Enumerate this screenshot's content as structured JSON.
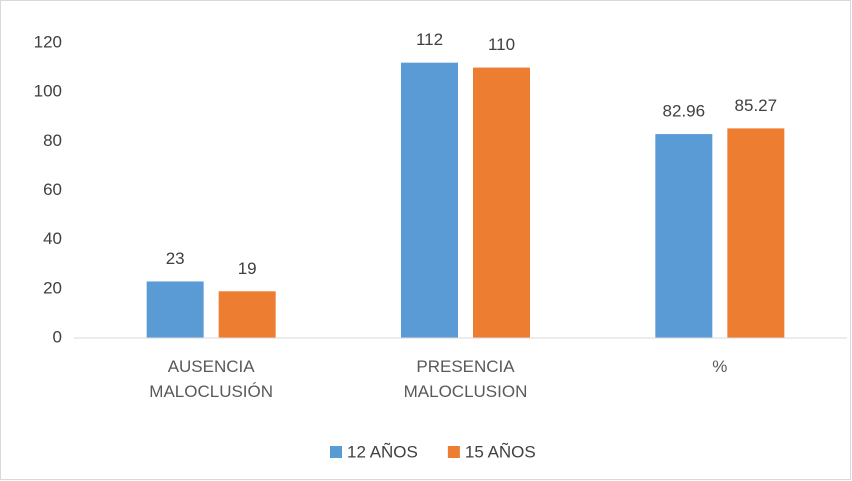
{
  "chart_data": {
    "type": "bar",
    "categories": [
      "AUSENCIA MALOCLUSIÓN",
      "PRESENCIA MALOCLUSION",
      "%"
    ],
    "series": [
      {
        "name": "12 AÑOS",
        "color": "#5b9bd5",
        "values": [
          23,
          112,
          82.96
        ]
      },
      {
        "name": "15 AÑOS",
        "color": "#ed7d31",
        "values": [
          19,
          110,
          85.27
        ]
      }
    ],
    "ylim": [
      0,
      120
    ],
    "yticks": [
      0,
      20,
      40,
      60,
      80,
      100,
      120
    ],
    "grid": false,
    "legend": "bottom"
  }
}
